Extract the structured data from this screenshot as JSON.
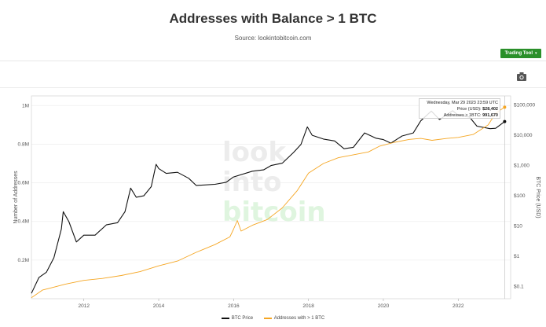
{
  "header": {
    "title": "Addresses with Balance > 1 BTC",
    "source": "Source: lookintobitcoin.com"
  },
  "toolbar": {
    "trading_tool_label": "Trading Tool",
    "camera_icon": "camera-icon"
  },
  "watermark": [
    "look",
    "into",
    "bitcoin"
  ],
  "tooltip": {
    "date": "Wednesday, Mar 29 2023 23:59 UTC",
    "price_label": "Price (USD):",
    "price_value": "$28,402",
    "addr_label": "Addresses > 1BTC:",
    "addr_value": "991,670"
  },
  "colors": {
    "price": "#111111",
    "addresses": "#f5a623",
    "button": "#2a8f2a"
  },
  "chart_data": {
    "type": "line",
    "xlabel": "",
    "ylabel_left": "Number of Addresses",
    "ylabel_right": "BTC Price (USD)",
    "x_range": [
      2010.6,
      2023.4
    ],
    "y_left_range": [
      0,
      1050000
    ],
    "y_right_range_log": [
      0.04,
      200000
    ],
    "x_ticks": [
      2012,
      2014,
      2016,
      2018,
      2020,
      2022
    ],
    "x_tick_labels": [
      "2012",
      "2014",
      "2016",
      "2018",
      "2020",
      "2022"
    ],
    "y_left_ticks": [
      200000,
      400000,
      600000,
      800000,
      1000000
    ],
    "y_left_tick_labels": [
      "0.2M",
      "0.4M",
      "0.6M",
      "0.8M",
      "1M"
    ],
    "y_right_ticks": [
      0.1,
      1,
      10,
      100,
      1000,
      10000,
      100000
    ],
    "y_right_tick_labels": [
      "$0.1",
      "$1",
      "$10",
      "$100",
      "$1,000",
      "$10,000",
      "$100,000"
    ],
    "series": [
      {
        "name": "BTC Price",
        "axis": "right",
        "points": [
          [
            2010.6,
            0.06
          ],
          [
            2010.8,
            0.2
          ],
          [
            2011.0,
            0.3
          ],
          [
            2011.2,
            0.9
          ],
          [
            2011.4,
            8
          ],
          [
            2011.45,
            30
          ],
          [
            2011.6,
            14
          ],
          [
            2011.8,
            3
          ],
          [
            2012.0,
            5
          ],
          [
            2012.3,
            5
          ],
          [
            2012.6,
            11
          ],
          [
            2012.9,
            13
          ],
          [
            2013.1,
            30
          ],
          [
            2013.25,
            180
          ],
          [
            2013.4,
            90
          ],
          [
            2013.6,
            100
          ],
          [
            2013.8,
            200
          ],
          [
            2013.93,
            1100
          ],
          [
            2014.0,
            800
          ],
          [
            2014.2,
            550
          ],
          [
            2014.5,
            600
          ],
          [
            2014.8,
            380
          ],
          [
            2015.0,
            220
          ],
          [
            2015.5,
            240
          ],
          [
            2015.8,
            280
          ],
          [
            2016.0,
            420
          ],
          [
            2016.5,
            650
          ],
          [
            2016.8,
            720
          ],
          [
            2017.0,
            1000
          ],
          [
            2017.3,
            1200
          ],
          [
            2017.6,
            2700
          ],
          [
            2017.8,
            5000
          ],
          [
            2017.97,
            19000
          ],
          [
            2018.1,
            10000
          ],
          [
            2018.4,
            7500
          ],
          [
            2018.7,
            6500
          ],
          [
            2018.95,
            3600
          ],
          [
            2019.2,
            4000
          ],
          [
            2019.5,
            12000
          ],
          [
            2019.8,
            8000
          ],
          [
            2020.0,
            7200
          ],
          [
            2020.2,
            5500
          ],
          [
            2020.5,
            9500
          ],
          [
            2020.8,
            12000
          ],
          [
            2021.0,
            30000
          ],
          [
            2021.28,
            63000
          ],
          [
            2021.5,
            33000
          ],
          [
            2021.85,
            65000
          ],
          [
            2022.0,
            46000
          ],
          [
            2022.3,
            40000
          ],
          [
            2022.5,
            20000
          ],
          [
            2022.85,
            16500
          ],
          [
            2023.0,
            17000
          ],
          [
            2023.24,
            28402
          ]
        ]
      },
      {
        "name": "Addresses with > 1 BTC",
        "axis": "left",
        "points": [
          [
            2010.6,
            5000
          ],
          [
            2010.9,
            45000
          ],
          [
            2011.2,
            60000
          ],
          [
            2011.5,
            75000
          ],
          [
            2012.0,
            95000
          ],
          [
            2012.5,
            105000
          ],
          [
            2013.0,
            120000
          ],
          [
            2013.5,
            140000
          ],
          [
            2014.0,
            170000
          ],
          [
            2014.5,
            195000
          ],
          [
            2015.0,
            240000
          ],
          [
            2015.5,
            280000
          ],
          [
            2015.9,
            320000
          ],
          [
            2016.0,
            360000
          ],
          [
            2016.1,
            405000
          ],
          [
            2016.2,
            350000
          ],
          [
            2016.5,
            380000
          ],
          [
            2016.9,
            410000
          ],
          [
            2017.3,
            470000
          ],
          [
            2017.7,
            560000
          ],
          [
            2018.0,
            650000
          ],
          [
            2018.4,
            700000
          ],
          [
            2018.8,
            730000
          ],
          [
            2019.2,
            745000
          ],
          [
            2019.6,
            760000
          ],
          [
            2019.9,
            790000
          ],
          [
            2020.3,
            810000
          ],
          [
            2020.7,
            825000
          ],
          [
            2021.0,
            830000
          ],
          [
            2021.3,
            820000
          ],
          [
            2021.7,
            830000
          ],
          [
            2022.0,
            835000
          ],
          [
            2022.4,
            850000
          ],
          [
            2022.8,
            900000
          ],
          [
            2023.0,
            960000
          ],
          [
            2023.24,
            991670
          ]
        ]
      }
    ]
  }
}
